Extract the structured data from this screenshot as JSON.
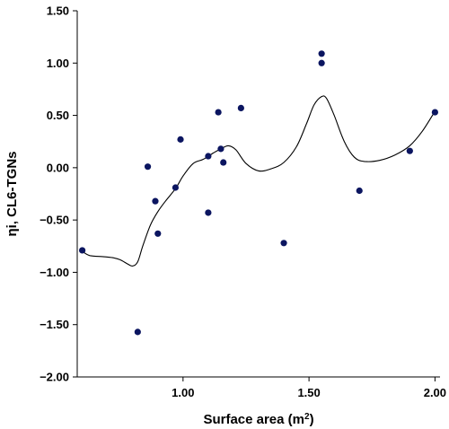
{
  "chart_data": {
    "type": "scatter",
    "xlabel": "Surface area (m",
    "xlabel_sup": "2",
    "xlabel_close": ")",
    "ylabel": "ηi, CL6-TGNs",
    "xlim": [
      0.58,
      2.02
    ],
    "ylim": [
      -2.0,
      1.5
    ],
    "x_ticks": [
      1.0,
      1.5,
      2.0
    ],
    "x_tick_labels": [
      "1.00",
      "1.50",
      "2.00"
    ],
    "y_ticks": [
      -2.0,
      -1.5,
      -1.0,
      -0.5,
      0.0,
      0.5,
      1.0,
      1.5
    ],
    "y_tick_labels": [
      "−2.00",
      "−1.50",
      "−1.00",
      "−0.50",
      "0.00",
      "0.50",
      "1.00",
      "1.50"
    ],
    "grid": false,
    "marker_color": "#0b1560",
    "points": [
      {
        "x": 0.6,
        "y": -0.79
      },
      {
        "x": 0.82,
        "y": -1.57
      },
      {
        "x": 0.86,
        "y": 0.01
      },
      {
        "x": 0.89,
        "y": -0.32
      },
      {
        "x": 0.9,
        "y": -0.63
      },
      {
        "x": 0.97,
        "y": -0.19
      },
      {
        "x": 0.99,
        "y": 0.27
      },
      {
        "x": 1.1,
        "y": -0.43
      },
      {
        "x": 1.1,
        "y": 0.11
      },
      {
        "x": 1.14,
        "y": 0.53
      },
      {
        "x": 1.15,
        "y": 0.18
      },
      {
        "x": 1.16,
        "y": 0.05
      },
      {
        "x": 1.23,
        "y": 0.57
      },
      {
        "x": 1.4,
        "y": -0.72
      },
      {
        "x": 1.55,
        "y": 1.0
      },
      {
        "x": 1.55,
        "y": 1.09
      },
      {
        "x": 1.7,
        "y": -0.22
      },
      {
        "x": 1.9,
        "y": 0.16
      },
      {
        "x": 2.0,
        "y": 0.53
      }
    ],
    "smooth_curve": [
      {
        "x": 0.6,
        "y": -0.8
      },
      {
        "x": 0.63,
        "y": -0.84
      },
      {
        "x": 0.68,
        "y": -0.85
      },
      {
        "x": 0.72,
        "y": -0.86
      },
      {
        "x": 0.75,
        "y": -0.88
      },
      {
        "x": 0.78,
        "y": -0.92
      },
      {
        "x": 0.8,
        "y": -0.94
      },
      {
        "x": 0.82,
        "y": -0.9
      },
      {
        "x": 0.84,
        "y": -0.75
      },
      {
        "x": 0.87,
        "y": -0.55
      },
      {
        "x": 0.9,
        "y": -0.42
      },
      {
        "x": 0.93,
        "y": -0.32
      },
      {
        "x": 0.97,
        "y": -0.2
      },
      {
        "x": 1.0,
        "y": -0.08
      },
      {
        "x": 1.04,
        "y": 0.04
      },
      {
        "x": 1.08,
        "y": 0.08
      },
      {
        "x": 1.12,
        "y": 0.14
      },
      {
        "x": 1.15,
        "y": 0.18
      },
      {
        "x": 1.18,
        "y": 0.21
      },
      {
        "x": 1.21,
        "y": 0.17
      },
      {
        "x": 1.25,
        "y": 0.04
      },
      {
        "x": 1.3,
        "y": -0.03
      },
      {
        "x": 1.35,
        "y": -0.01
      },
      {
        "x": 1.4,
        "y": 0.05
      },
      {
        "x": 1.45,
        "y": 0.2
      },
      {
        "x": 1.49,
        "y": 0.42
      },
      {
        "x": 1.52,
        "y": 0.6
      },
      {
        "x": 1.55,
        "y": 0.68
      },
      {
        "x": 1.57,
        "y": 0.66
      },
      {
        "x": 1.6,
        "y": 0.5
      },
      {
        "x": 1.64,
        "y": 0.25
      },
      {
        "x": 1.68,
        "y": 0.1
      },
      {
        "x": 1.72,
        "y": 0.06
      },
      {
        "x": 1.78,
        "y": 0.07
      },
      {
        "x": 1.84,
        "y": 0.12
      },
      {
        "x": 1.9,
        "y": 0.21
      },
      {
        "x": 1.95,
        "y": 0.35
      },
      {
        "x": 2.0,
        "y": 0.54
      }
    ]
  }
}
